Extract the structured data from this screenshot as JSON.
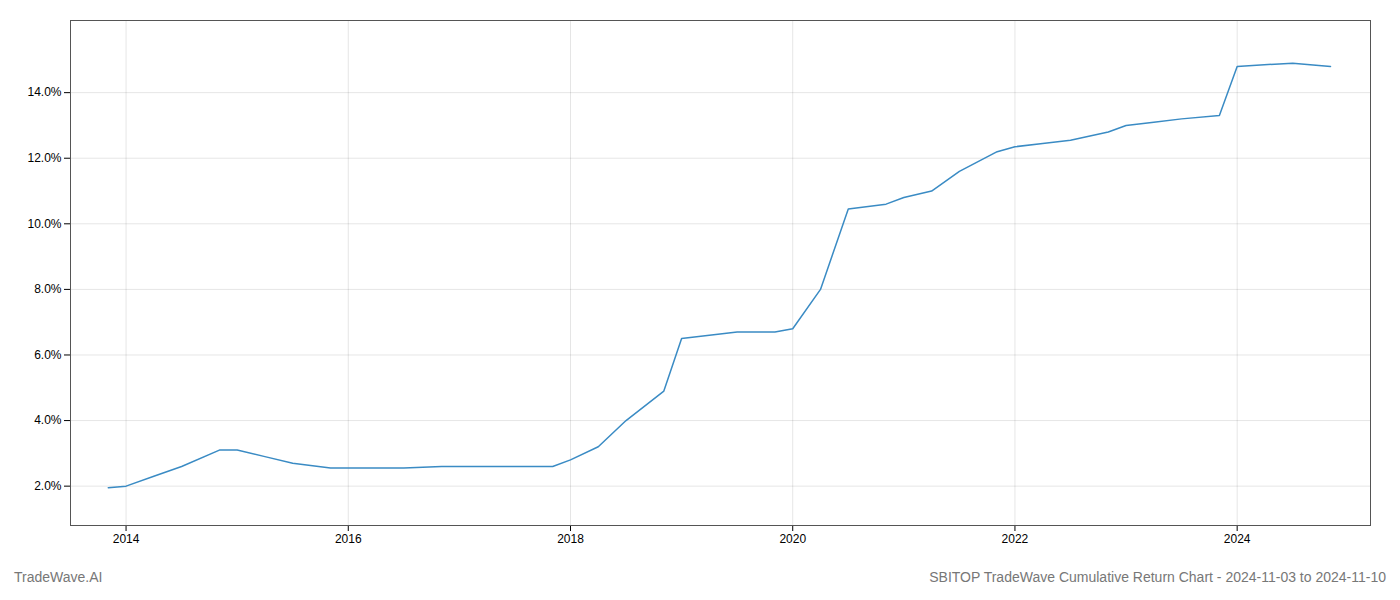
{
  "chart_data": {
    "type": "line",
    "title": "SBITOP TradeWave Cumulative Return Chart - 2024-11-03 to 2024-11-10",
    "annotations": [
      "TradeWave.AI"
    ],
    "x": [
      2013.84,
      2014.0,
      2014.25,
      2014.5,
      2014.84,
      2015.0,
      2015.25,
      2015.5,
      2015.84,
      2016.0,
      2016.25,
      2016.5,
      2016.84,
      2017.0,
      2017.25,
      2017.5,
      2017.84,
      2018.0,
      2018.25,
      2018.5,
      2018.84,
      2019.0,
      2019.25,
      2019.5,
      2019.84,
      2020.0,
      2020.25,
      2020.5,
      2020.84,
      2021.0,
      2021.25,
      2021.5,
      2021.84,
      2022.0,
      2022.25,
      2022.5,
      2022.84,
      2023.0,
      2023.25,
      2023.5,
      2023.84,
      2024.0,
      2024.5,
      2024.84
    ],
    "values": [
      0.0195,
      0.02,
      0.023,
      0.026,
      0.031,
      0.031,
      0.029,
      0.027,
      0.0255,
      0.0255,
      0.0255,
      0.0255,
      0.026,
      0.026,
      0.026,
      0.026,
      0.026,
      0.028,
      0.032,
      0.04,
      0.049,
      0.065,
      0.066,
      0.067,
      0.067,
      0.068,
      0.08,
      0.1045,
      0.106,
      0.108,
      0.11,
      0.116,
      0.122,
      0.1235,
      0.1245,
      0.1255,
      0.128,
      0.13,
      0.131,
      0.132,
      0.133,
      0.148,
      0.149,
      0.148
    ],
    "color": "#3a8bc4",
    "xlim": [
      2013.5,
      2025.2
    ],
    "ylim": [
      0.008,
      0.162
    ],
    "xticks": [
      2014,
      2016,
      2018,
      2020,
      2022,
      2024
    ],
    "yticks": [
      {
        "value": 0.02,
        "label": "2.0%"
      },
      {
        "value": 0.04,
        "label": "4.0%"
      },
      {
        "value": 0.06,
        "label": "6.0%"
      },
      {
        "value": 0.08,
        "label": "8.0%"
      },
      {
        "value": 0.1,
        "label": "10.0%"
      },
      {
        "value": 0.12,
        "label": "12.0%"
      },
      {
        "value": 0.14,
        "label": "14.0%"
      }
    ],
    "grid": true
  }
}
